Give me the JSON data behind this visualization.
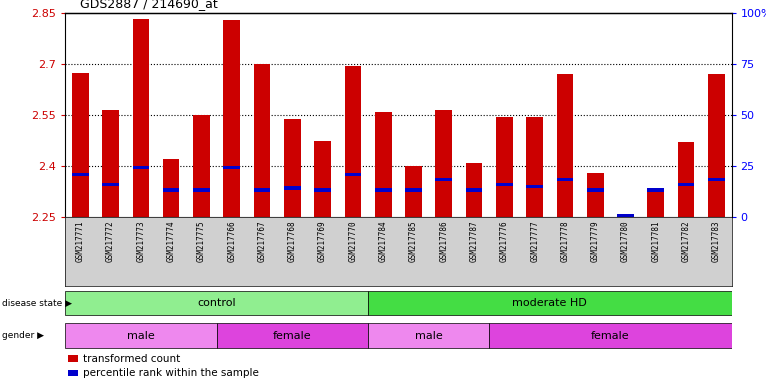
{
  "title": "GDS2887 / 214690_at",
  "samples": [
    "GSM217771",
    "GSM217772",
    "GSM217773",
    "GSM217774",
    "GSM217775",
    "GSM217766",
    "GSM217767",
    "GSM217768",
    "GSM217769",
    "GSM217770",
    "GSM217784",
    "GSM217785",
    "GSM217786",
    "GSM217787",
    "GSM217776",
    "GSM217777",
    "GSM217778",
    "GSM217779",
    "GSM217780",
    "GSM217781",
    "GSM217782",
    "GSM217783"
  ],
  "red_values": [
    2.675,
    2.565,
    2.835,
    2.42,
    2.55,
    2.83,
    2.7,
    2.54,
    2.475,
    2.695,
    2.56,
    2.4,
    2.565,
    2.41,
    2.545,
    2.545,
    2.67,
    2.38,
    2.255,
    2.33,
    2.47,
    2.67
  ],
  "blue_values": [
    2.375,
    2.345,
    2.395,
    2.33,
    2.33,
    2.395,
    2.33,
    2.335,
    2.33,
    2.375,
    2.33,
    2.33,
    2.36,
    2.33,
    2.345,
    2.34,
    2.36,
    2.33,
    2.255,
    2.33,
    2.345,
    2.36
  ],
  "ymin": 2.25,
  "ymax": 2.85,
  "yticks": [
    2.25,
    2.4,
    2.55,
    2.7,
    2.85
  ],
  "ytick_labels": [
    "2.25",
    "2.4",
    "2.55",
    "2.7",
    "2.85"
  ],
  "right_yticks": [
    0,
    25,
    50,
    75,
    100
  ],
  "right_ytick_labels": [
    "0",
    "25",
    "50",
    "75",
    "100%"
  ],
  "bar_color": "#cc0000",
  "blue_color": "#0000cc",
  "bar_width": 0.55,
  "disease_state_groups": [
    {
      "label": "control",
      "start": 0,
      "end": 10,
      "color": "#90ee90"
    },
    {
      "label": "moderate HD",
      "start": 10,
      "end": 22,
      "color": "#44dd44"
    }
  ],
  "gender_groups": [
    {
      "label": "male",
      "start": 0,
      "end": 5,
      "color": "#ee88ee"
    },
    {
      "label": "female",
      "start": 5,
      "end": 10,
      "color": "#dd44dd"
    },
    {
      "label": "male",
      "start": 10,
      "end": 14,
      "color": "#ee88ee"
    },
    {
      "label": "female",
      "start": 14,
      "end": 22,
      "color": "#dd44dd"
    }
  ],
  "legend_items": [
    {
      "label": "transformed count",
      "color": "#cc0000"
    },
    {
      "label": "percentile rank within the sample",
      "color": "#0000cc"
    }
  ],
  "tick_color_left": "#cc0000",
  "tick_color_right": "#0000ff",
  "gridlines": [
    2.4,
    2.55,
    2.7
  ],
  "label_bg_color": "#d0d0d0"
}
